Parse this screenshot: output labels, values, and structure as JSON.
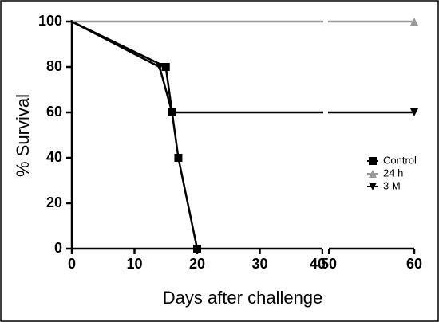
{
  "chart_data": {
    "type": "line",
    "ylabel": "% Survival",
    "xlabel": "Days after challenge",
    "ylim": [
      0,
      100
    ],
    "yticks": [
      0,
      20,
      40,
      60,
      80,
      100
    ],
    "x_segments": [
      {
        "xlim": [
          0,
          40
        ],
        "xticks": [
          0,
          10,
          20,
          30,
          40
        ]
      },
      {
        "xlim": [
          50,
          60
        ],
        "xticks": [
          50,
          60
        ]
      }
    ],
    "series": [
      {
        "name": "Control",
        "color": "#000000",
        "marker": "square",
        "x": [
          0,
          15,
          16,
          17,
          20
        ],
        "values": [
          100,
          80,
          60,
          40,
          0
        ]
      },
      {
        "name": "24 h",
        "color": "#999999",
        "marker": "triangle-up",
        "x": [
          0,
          60
        ],
        "values": [
          100,
          100
        ]
      },
      {
        "name": "3 M",
        "color": "#000000",
        "marker": "triangle-down",
        "x": [
          0,
          14,
          16,
          60
        ],
        "values": [
          100,
          80,
          60,
          60
        ]
      }
    ]
  }
}
